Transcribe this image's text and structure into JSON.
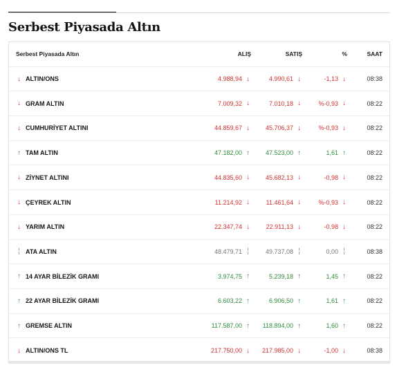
{
  "page": {
    "title": "Serbest Piyasada Altın"
  },
  "table": {
    "headers": {
      "name": "Serbest Piyasada Altın",
      "alis": "ALIŞ",
      "satis": "SATIŞ",
      "yuzde": "%",
      "saat": "SAAT"
    },
    "rows": [
      {
        "name": "ALTIN/ONS",
        "alis": "4.988,94",
        "satis": "4.990,61",
        "yuzde": "-1,13",
        "saat": "08:38",
        "trend": "down"
      },
      {
        "name": "GRAM ALTIN",
        "alis": "7.009,32",
        "satis": "7.010,18",
        "yuzde": "%-0,93",
        "saat": "08:22",
        "trend": "down"
      },
      {
        "name": "CUMHURİYET ALTINI",
        "alis": "44.859,67",
        "satis": "45.706,37",
        "yuzde": "%-0,93",
        "saat": "08:22",
        "trend": "down"
      },
      {
        "name": "TAM ALTIN",
        "alis": "47.182,00",
        "satis": "47.523,00",
        "yuzde": "1,61",
        "saat": "08:22",
        "trend": "up"
      },
      {
        "name": "ZİYNET ALTINI",
        "alis": "44.835,60",
        "satis": "45.682,13",
        "yuzde": "-0,98",
        "saat": "08:22",
        "trend": "down"
      },
      {
        "name": "ÇEYREK ALTIN",
        "alis": "11.214,92",
        "satis": "11.461,64",
        "yuzde": "%-0,93",
        "saat": "08:22",
        "trend": "down"
      },
      {
        "name": "YARIM ALTIN",
        "alis": "22.347,74",
        "satis": "22.911,13",
        "yuzde": "-0,98",
        "saat": "08:22",
        "trend": "down"
      },
      {
        "name": "ATA ALTIN",
        "alis": "48.479,71",
        "satis": "49.737,08",
        "yuzde": "0,00",
        "saat": "08:38",
        "trend": "flat"
      },
      {
        "name": "14 AYAR BİLEZİK GRAMI",
        "alis": "3.974,75",
        "satis": "5.239,18",
        "yuzde": "1,45",
        "saat": "08:22",
        "trend": "up"
      },
      {
        "name": "22 AYAR BİLEZİK GRAMI",
        "alis": "6.603,22",
        "satis": "6.906,50",
        "yuzde": "1,61",
        "saat": "08:22",
        "trend": "up"
      },
      {
        "name": "GREMSE ALTIN",
        "alis": "117.587,00",
        "satis": "118.894,00",
        "yuzde": "1,60",
        "saat": "08:22",
        "trend": "up"
      },
      {
        "name": "ALTIN/ONS TL",
        "alis": "217.750,00",
        "satis": "217.985,00",
        "yuzde": "-1,00",
        "saat": "08:38",
        "trend": "down"
      }
    ]
  },
  "icons": {
    "down": "arrow-down-icon",
    "up": "arrow-up-icon",
    "flat": "neutral-icon"
  },
  "colors": {
    "down": "#d32f2f",
    "up": "#2e8b3a",
    "flat": "#888888"
  }
}
